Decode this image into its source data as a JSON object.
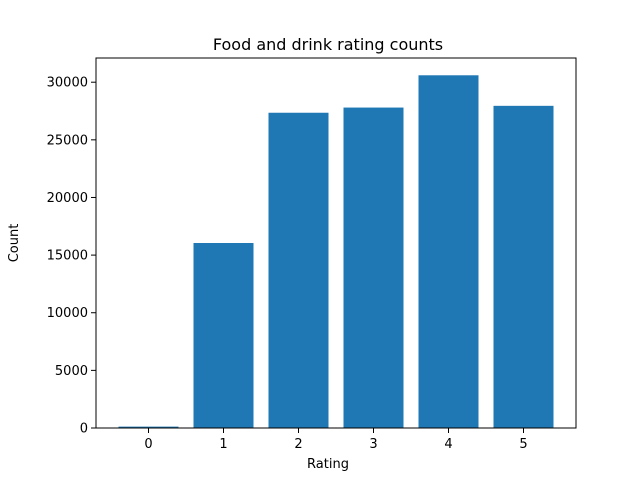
{
  "chart_data": {
    "type": "bar",
    "title": "Food and drink rating counts",
    "xlabel": "Rating",
    "ylabel": "Count",
    "categories": [
      "0",
      "1",
      "2",
      "3",
      "4",
      "5"
    ],
    "values": [
      120,
      16050,
      27350,
      27800,
      30600,
      27950
    ],
    "ylim": [
      0,
      32100
    ],
    "yticks": [
      0,
      5000,
      10000,
      15000,
      20000,
      25000,
      30000
    ],
    "ytick_labels": [
      "0",
      "5000",
      "10000",
      "15000",
      "20000",
      "25000",
      "30000"
    ],
    "bar_color": "#1f77b4",
    "grid": false,
    "legend": "none"
  }
}
